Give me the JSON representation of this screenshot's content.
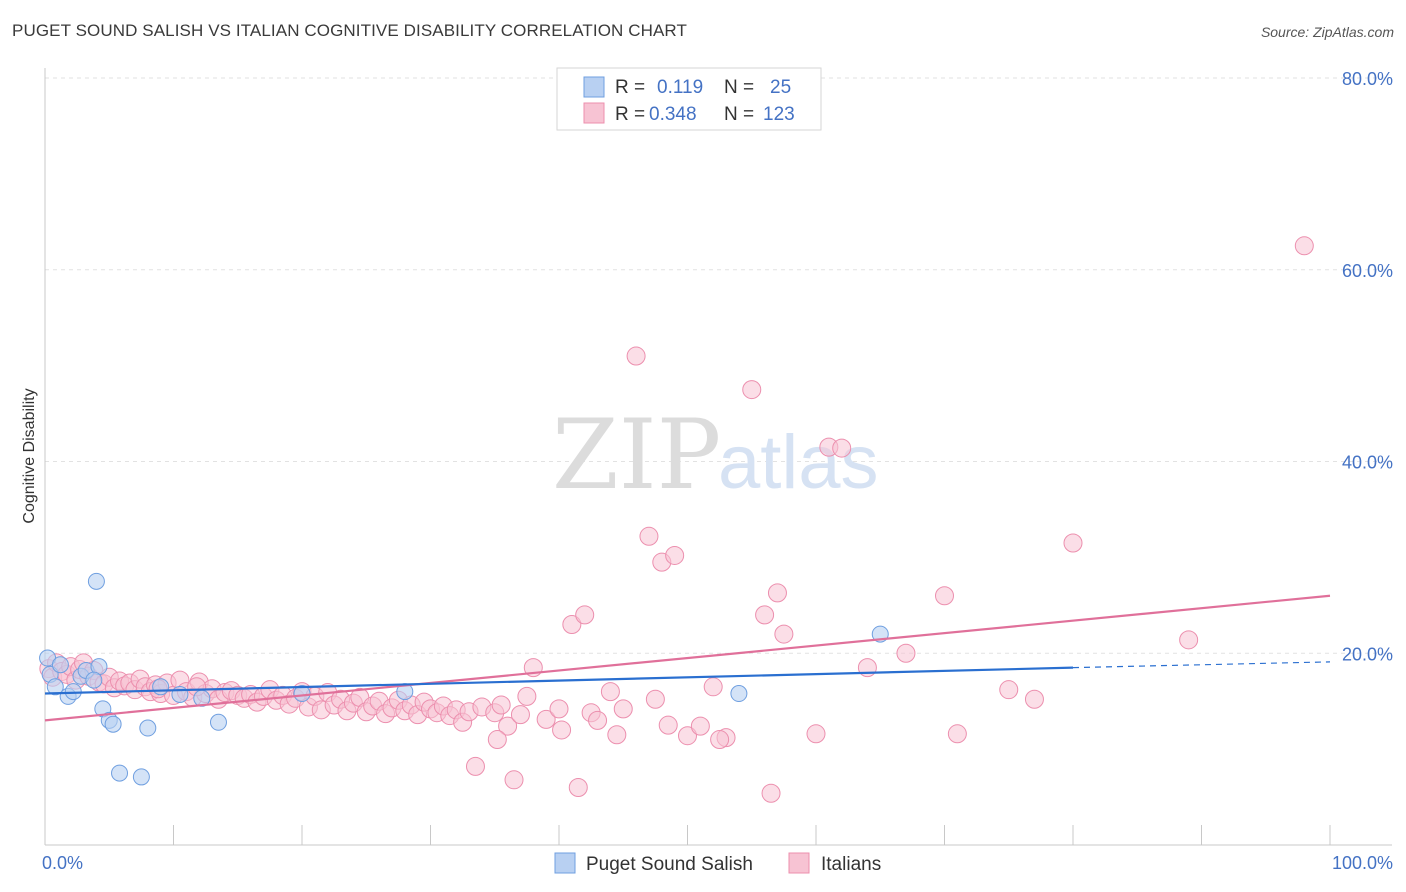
{
  "header": {
    "title": "PUGET SOUND SALISH VS ITALIAN COGNITIVE DISABILITY CORRELATION CHART",
    "source": "Source: ZipAtlas.com"
  },
  "watermark": {
    "part1": "ZIP",
    "part2": "atlas"
  },
  "legend": {
    "rows": [
      {
        "r_label": "R =",
        "r_value": "0.119",
        "n_label": "N =",
        "n_value": "25"
      },
      {
        "r_label": "R =",
        "r_value": "0.348",
        "n_label": "N =",
        "n_value": "123"
      }
    ]
  },
  "colors": {
    "blue_fill": "#b8d0f2",
    "blue_stroke": "#6f9fe0",
    "blue_line": "#2a6fd0",
    "pink_fill": "#f7c3d3",
    "pink_stroke": "#ec8fae",
    "pink_line": "#e0709a",
    "grid": "#e2e2e2",
    "axis_label": "#4472c4"
  },
  "chart_data": {
    "type": "scatter",
    "title": "PUGET SOUND SALISH VS ITALIAN COGNITIVE DISABILITY CORRELATION CHART",
    "xlabel": "",
    "ylabel": "Cognitive Disability",
    "xlim": [
      0,
      100
    ],
    "ylim": [
      0,
      80
    ],
    "x_tick_labels": [
      "0.0%",
      "100.0%"
    ],
    "y_ticks": [
      20,
      40,
      60,
      80
    ],
    "y_tick_labels": [
      "20.0%",
      "40.0%",
      "60.0%",
      "80.0%"
    ],
    "grid": true,
    "legend_position": "top-center",
    "series": [
      {
        "name": "Puget Sound Salish",
        "r": 0.119,
        "n": 25,
        "trend": {
          "x0": 0,
          "y0": 15.8,
          "x1": 80,
          "y1": 18.5,
          "dashed_to_x": 100,
          "dashed_to_y": 19.1
        },
        "points": [
          [
            0.2,
            19.5
          ],
          [
            0.4,
            17.8
          ],
          [
            0.8,
            16.5
          ],
          [
            1.2,
            18.8
          ],
          [
            1.8,
            15.5
          ],
          [
            2.2,
            16.0
          ],
          [
            2.8,
            17.6
          ],
          [
            3.2,
            18.2
          ],
          [
            4.0,
            27.5
          ],
          [
            4.2,
            18.6
          ],
          [
            4.5,
            14.2
          ],
          [
            5.0,
            13.0
          ],
          [
            5.3,
            12.6
          ],
          [
            5.8,
            7.5
          ],
          [
            7.5,
            7.1
          ],
          [
            8.0,
            12.2
          ],
          [
            9.0,
            16.5
          ],
          [
            10.5,
            15.7
          ],
          [
            12.2,
            15.3
          ],
          [
            13.5,
            12.8
          ],
          [
            20.0,
            15.8
          ],
          [
            28.0,
            16.0
          ],
          [
            54.0,
            15.8
          ],
          [
            65.0,
            22.0
          ],
          [
            3.8,
            17.2
          ]
        ]
      },
      {
        "name": "Italians",
        "r": 0.348,
        "n": 123,
        "trend": {
          "x0": 0,
          "y0": 13.0,
          "x1": 100,
          "y1": 26.0
        },
        "points": [
          [
            0.3,
            18.4
          ],
          [
            0.6,
            17.5
          ],
          [
            0.9,
            19.0
          ],
          [
            1.3,
            18.1
          ],
          [
            1.7,
            17.8
          ],
          [
            2.0,
            18.6
          ],
          [
            2.4,
            17.2
          ],
          [
            2.7,
            18.3
          ],
          [
            3.0,
            19.0
          ],
          [
            3.4,
            17.6
          ],
          [
            3.8,
            18.2
          ],
          [
            4.2,
            17.0
          ],
          [
            4.6,
            16.8
          ],
          [
            5.0,
            17.5
          ],
          [
            5.4,
            16.4
          ],
          [
            5.8,
            17.1
          ],
          [
            6.2,
            16.6
          ],
          [
            6.6,
            16.9
          ],
          [
            7.0,
            16.2
          ],
          [
            7.4,
            17.3
          ],
          [
            7.8,
            16.5
          ],
          [
            8.2,
            16.0
          ],
          [
            8.6,
            16.7
          ],
          [
            9.0,
            15.8
          ],
          [
            9.5,
            16.9
          ],
          [
            10.0,
            15.6
          ],
          [
            10.5,
            17.2
          ],
          [
            11.0,
            16.0
          ],
          [
            11.5,
            15.4
          ],
          [
            12.0,
            17.0
          ],
          [
            12.5,
            15.8
          ],
          [
            13.0,
            16.3
          ],
          [
            13.5,
            15.2
          ],
          [
            14.0,
            15.9
          ],
          [
            14.5,
            16.1
          ],
          [
            15.0,
            15.6
          ],
          [
            15.5,
            15.3
          ],
          [
            16.0,
            15.7
          ],
          [
            16.5,
            14.9
          ],
          [
            17.0,
            15.5
          ],
          [
            17.5,
            16.2
          ],
          [
            18.0,
            15.1
          ],
          [
            18.5,
            15.6
          ],
          [
            19.0,
            14.7
          ],
          [
            19.5,
            15.3
          ],
          [
            20.0,
            16.0
          ],
          [
            20.5,
            14.4
          ],
          [
            21.0,
            15.5
          ],
          [
            21.5,
            14.1
          ],
          [
            22.0,
            15.9
          ],
          [
            22.5,
            14.6
          ],
          [
            23.0,
            15.2
          ],
          [
            23.5,
            14.0
          ],
          [
            24.0,
            14.8
          ],
          [
            24.5,
            15.4
          ],
          [
            25.0,
            13.9
          ],
          [
            25.5,
            14.5
          ],
          [
            26.0,
            15.0
          ],
          [
            26.5,
            13.7
          ],
          [
            27.0,
            14.3
          ],
          [
            27.5,
            15.1
          ],
          [
            28.0,
            14.0
          ],
          [
            28.5,
            14.6
          ],
          [
            29.0,
            13.6
          ],
          [
            29.5,
            14.9
          ],
          [
            30.0,
            14.2
          ],
          [
            30.5,
            13.8
          ],
          [
            31.0,
            14.5
          ],
          [
            31.5,
            13.5
          ],
          [
            32.0,
            14.1
          ],
          [
            32.5,
            12.8
          ],
          [
            33.0,
            13.9
          ],
          [
            34.0,
            14.4
          ],
          [
            35.0,
            13.8
          ],
          [
            35.5,
            14.6
          ],
          [
            36.0,
            12.4
          ],
          [
            37.0,
            13.6
          ],
          [
            37.5,
            15.5
          ],
          [
            38.0,
            18.5
          ],
          [
            39.0,
            13.1
          ],
          [
            40.0,
            14.2
          ],
          [
            41.0,
            23.0
          ],
          [
            42.0,
            24.0
          ],
          [
            42.5,
            13.8
          ],
          [
            43.0,
            13.0
          ],
          [
            44.0,
            16.0
          ],
          [
            45.0,
            14.2
          ],
          [
            46.0,
            51.0
          ],
          [
            47.0,
            32.2
          ],
          [
            47.5,
            15.2
          ],
          [
            48.0,
            29.5
          ],
          [
            49.0,
            30.2
          ],
          [
            50.0,
            11.4
          ],
          [
            51.0,
            12.4
          ],
          [
            52.0,
            16.5
          ],
          [
            53.0,
            11.2
          ],
          [
            55.0,
            47.5
          ],
          [
            56.0,
            24.0
          ],
          [
            57.0,
            26.3
          ],
          [
            57.5,
            22.0
          ],
          [
            60.0,
            11.6
          ],
          [
            61.0,
            41.5
          ],
          [
            62.0,
            41.4
          ],
          [
            64.0,
            18.5
          ],
          [
            67.0,
            20.0
          ],
          [
            70.0,
            26.0
          ],
          [
            71.0,
            11.6
          ],
          [
            75.0,
            16.2
          ],
          [
            77.0,
            15.2
          ],
          [
            80.0,
            31.5
          ],
          [
            89.0,
            21.4
          ],
          [
            98.0,
            62.5
          ],
          [
            33.5,
            8.2
          ],
          [
            36.5,
            6.8
          ],
          [
            41.5,
            6.0
          ],
          [
            44.5,
            11.5
          ],
          [
            56.5,
            5.4
          ],
          [
            48.5,
            12.5
          ],
          [
            35.2,
            11.0
          ],
          [
            40.2,
            12.0
          ],
          [
            52.5,
            11.0
          ],
          [
            8.8,
            16.3
          ],
          [
            11.8,
            16.5
          ]
        ]
      }
    ]
  },
  "bottom_legend": [
    {
      "label": "Puget Sound Salish"
    },
    {
      "label": "Italians"
    }
  ]
}
